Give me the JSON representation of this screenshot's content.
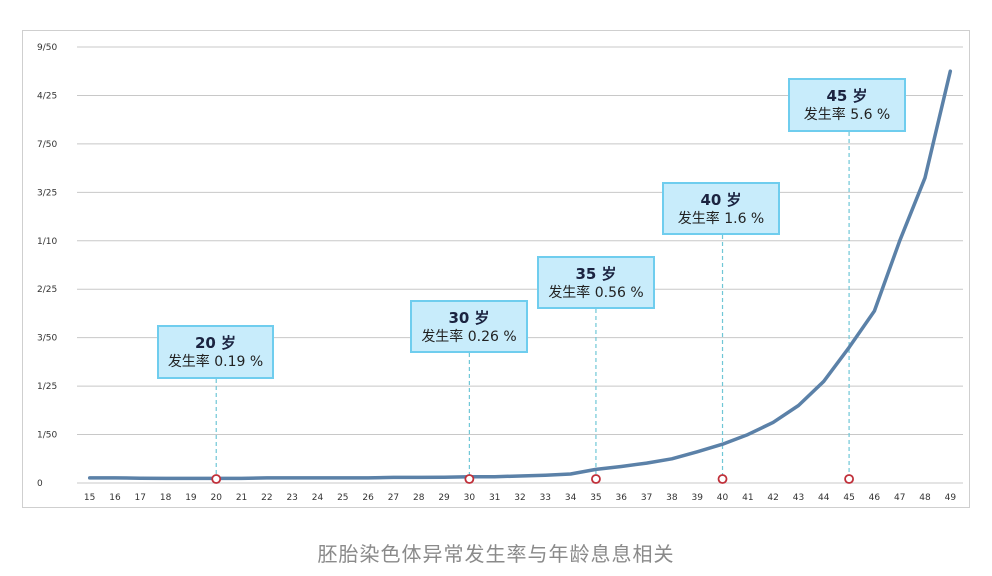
{
  "caption": "胚胎染色体异常发生率与年龄息息相关",
  "colors": {
    "line": "#5b81a8",
    "grid": "#c8c8c8",
    "marker": "#c0303a",
    "dash": "#6fc7d6",
    "callout_fill": "#c8ecfb",
    "callout_border": "#6fcdee"
  },
  "chart_data": {
    "type": "line",
    "title": "",
    "xlabel": "",
    "ylabel": "",
    "x": [
      15,
      16,
      17,
      18,
      19,
      20,
      21,
      22,
      23,
      24,
      25,
      26,
      27,
      28,
      29,
      30,
      31,
      32,
      33,
      34,
      35,
      36,
      37,
      38,
      39,
      40,
      41,
      42,
      43,
      44,
      45,
      46,
      47,
      48,
      49
    ],
    "series": [
      {
        "values": [
          0.0021,
          0.0021,
          0.002,
          0.0019,
          0.0019,
          0.0019,
          0.0019,
          0.0021,
          0.0021,
          0.0021,
          0.0021,
          0.0021,
          0.0023,
          0.0023,
          0.0024,
          0.0026,
          0.0026,
          0.0029,
          0.0032,
          0.0037,
          0.0056,
          0.0068,
          0.0082,
          0.01,
          0.0129,
          0.016,
          0.02,
          0.025,
          0.032,
          0.042,
          0.056,
          0.071,
          0.1,
          0.126,
          0.17
        ]
      }
    ],
    "y_ticks": [
      {
        "label": "0",
        "value": 0
      },
      {
        "label": "1/50",
        "value": 0.02
      },
      {
        "label": "1/25",
        "value": 0.04
      },
      {
        "label": "3/50",
        "value": 0.06
      },
      {
        "label": "2/25",
        "value": 0.08
      },
      {
        "label": "1/10",
        "value": 0.1
      },
      {
        "label": "3/25",
        "value": 0.12
      },
      {
        "label": "7/50",
        "value": 0.14
      },
      {
        "label": "4/25",
        "value": 0.16
      },
      {
        "label": "9/50",
        "value": 0.18
      }
    ],
    "ylim": [
      0,
      0.18
    ],
    "xlim": [
      15,
      49
    ],
    "grid": true,
    "legend": "none",
    "annotations": [
      {
        "x": 20,
        "age_label": "20 岁",
        "rate_label": "发生率 0.19 %"
      },
      {
        "x": 30,
        "age_label": "30 岁",
        "rate_label": "发生率 0.26 %"
      },
      {
        "x": 35,
        "age_label": "35 岁",
        "rate_label": "发生率 0.56 %"
      },
      {
        "x": 40,
        "age_label": "40 岁",
        "rate_label": "发生率 1.6 %"
      },
      {
        "x": 45,
        "age_label": "45 岁",
        "rate_label": "发生率 5.6 %"
      }
    ]
  }
}
